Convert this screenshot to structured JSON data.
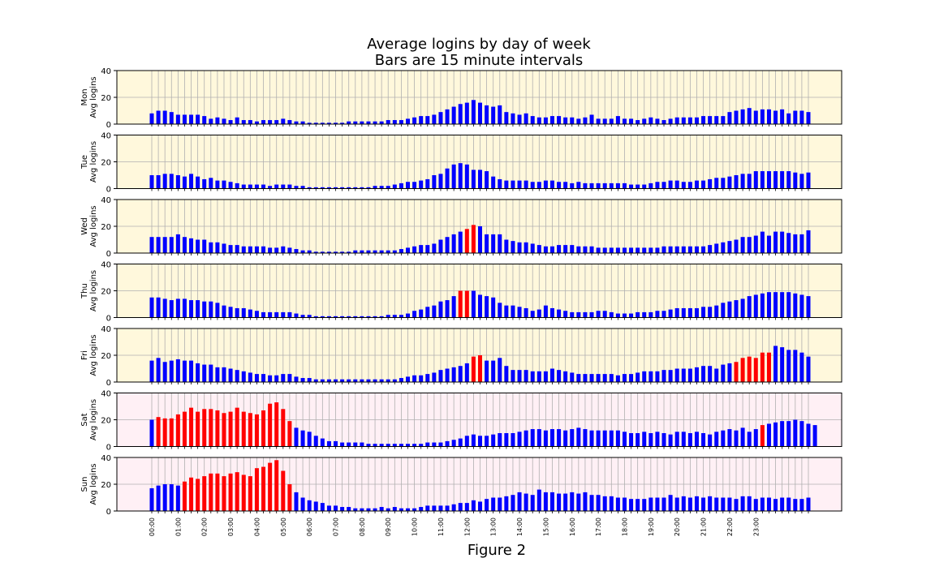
{
  "figure": {
    "title_line1": "Average logins by day of week",
    "title_line2": "Bars are 15 minute intervals",
    "caption": "Figure 2"
  },
  "colors": {
    "bar_normal": "#0000ff",
    "bar_high": "#ff0000",
    "weekday_bg": "#fff8dc",
    "weekend_bg": "#fff0f5",
    "grid": "#b0b0b0"
  },
  "chart_data": {
    "type": "bar",
    "ylabel_suffix": "Avg logins",
    "ylim": [
      0,
      40
    ],
    "yticks": [
      0,
      20,
      40
    ],
    "grid": true,
    "x_tick_labels": [
      "00:00",
      "01:00",
      "02:00",
      "03:00",
      "04:00",
      "05:00",
      "06:00",
      "07:00",
      "08:00",
      "09:00",
      "10:00",
      "11:00",
      "12:00",
      "13:00",
      "14:00",
      "15:00",
      "16:00",
      "17:00",
      "18:00",
      "19:00",
      "20:00",
      "21:00",
      "22:00",
      "23:00"
    ],
    "x_tick_every": 4,
    "interval_minutes": 15,
    "panels": [
      {
        "day": "Mon",
        "weekend": false,
        "highlight": [],
        "values": [
          8,
          10,
          10,
          9,
          7,
          7,
          7,
          7,
          6,
          4,
          5,
          4,
          3,
          5,
          3,
          3,
          2,
          3,
          3,
          3,
          4,
          3,
          2,
          2,
          1,
          1,
          1,
          1,
          1,
          1,
          2,
          2,
          2,
          2,
          2,
          2,
          3,
          3,
          3,
          4,
          5,
          6,
          6,
          7,
          9,
          11,
          13,
          15,
          16,
          18,
          16,
          14,
          13,
          14,
          9,
          8,
          7,
          8,
          6,
          5,
          5,
          6,
          6,
          5,
          5,
          4,
          5,
          7,
          4,
          4,
          4,
          6,
          4,
          4,
          3,
          4,
          5,
          4,
          3,
          4,
          5,
          5,
          5,
          5,
          6,
          6,
          6,
          6,
          9,
          10,
          11,
          12,
          10,
          11,
          11,
          10,
          11,
          8,
          10,
          10,
          9
        ]
      },
      {
        "day": "Tue",
        "weekend": false,
        "highlight": [],
        "values": [
          10,
          10,
          11,
          11,
          10,
          9,
          11,
          9,
          7,
          8,
          6,
          6,
          5,
          4,
          3,
          3,
          3,
          3,
          2,
          3,
          3,
          3,
          2,
          2,
          1,
          1,
          1,
          1,
          1,
          1,
          1,
          1,
          1,
          1,
          2,
          2,
          2,
          3,
          4,
          5,
          5,
          6,
          7,
          10,
          11,
          15,
          18,
          19,
          18,
          14,
          14,
          13,
          9,
          7,
          6,
          6,
          6,
          6,
          5,
          5,
          6,
          6,
          5,
          5,
          4,
          5,
          4,
          4,
          4,
          4,
          4,
          4,
          4,
          3,
          3,
          3,
          4,
          5,
          5,
          6,
          6,
          5,
          5,
          6,
          6,
          7,
          8,
          8,
          9,
          10,
          11,
          11,
          13,
          13,
          13,
          13,
          13,
          13,
          12,
          11,
          12
        ]
      },
      {
        "day": "Wed",
        "weekend": false,
        "highlight": [
          48,
          49
        ],
        "values": [
          12,
          12,
          12,
          12,
          14,
          12,
          11,
          10,
          10,
          8,
          8,
          7,
          6,
          6,
          5,
          5,
          5,
          5,
          4,
          4,
          5,
          4,
          3,
          2,
          2,
          1,
          1,
          1,
          1,
          1,
          1,
          2,
          2,
          2,
          2,
          2,
          2,
          2,
          3,
          4,
          5,
          6,
          6,
          7,
          10,
          12,
          14,
          16,
          18,
          21,
          20,
          14,
          14,
          14,
          10,
          9,
          8,
          8,
          7,
          6,
          5,
          5,
          6,
          6,
          6,
          5,
          5,
          5,
          4,
          4,
          4,
          4,
          4,
          4,
          4,
          4,
          4,
          4,
          5,
          5,
          5,
          5,
          5,
          5,
          5,
          6,
          7,
          8,
          9,
          10,
          12,
          12,
          13,
          16,
          13,
          16,
          16,
          15,
          14,
          14,
          17
        ]
      },
      {
        "day": "Thu",
        "weekend": false,
        "highlight": [
          47,
          48
        ],
        "values": [
          15,
          15,
          14,
          13,
          14,
          14,
          13,
          13,
          12,
          12,
          11,
          9,
          8,
          7,
          7,
          6,
          5,
          4,
          4,
          4,
          4,
          4,
          3,
          2,
          2,
          1,
          1,
          1,
          1,
          1,
          1,
          1,
          1,
          1,
          1,
          1,
          2,
          2,
          2,
          3,
          5,
          6,
          8,
          9,
          12,
          13,
          16,
          20,
          20,
          20,
          17,
          16,
          15,
          11,
          9,
          9,
          8,
          7,
          5,
          6,
          9,
          7,
          6,
          5,
          4,
          4,
          4,
          4,
          5,
          5,
          4,
          3,
          3,
          3,
          4,
          4,
          4,
          5,
          5,
          6,
          7,
          7,
          7,
          7,
          8,
          8,
          9,
          11,
          12,
          13,
          14,
          16,
          17,
          18,
          19,
          19,
          19,
          19,
          18,
          17,
          16
        ]
      },
      {
        "day": "Fri",
        "weekend": false,
        "highlight": [
          49,
          50,
          89,
          90,
          91,
          92,
          93,
          94
        ],
        "values": [
          16,
          18,
          15,
          16,
          17,
          16,
          16,
          14,
          13,
          13,
          11,
          11,
          10,
          9,
          8,
          7,
          6,
          6,
          5,
          5,
          6,
          6,
          4,
          3,
          3,
          2,
          2,
          2,
          2,
          2,
          2,
          2,
          2,
          2,
          2,
          2,
          2,
          2,
          3,
          4,
          5,
          5,
          6,
          7,
          9,
          10,
          11,
          12,
          14,
          19,
          20,
          16,
          16,
          18,
          12,
          9,
          9,
          9,
          8,
          8,
          8,
          10,
          9,
          8,
          7,
          6,
          6,
          6,
          6,
          6,
          6,
          5,
          6,
          6,
          7,
          8,
          8,
          8,
          9,
          9,
          10,
          10,
          10,
          11,
          12,
          12,
          10,
          13,
          14,
          15,
          18,
          19,
          18,
          22,
          22,
          27,
          26,
          24,
          24,
          22,
          19
        ]
      },
      {
        "day": "Sat",
        "weekend": true,
        "highlight": [
          1,
          2,
          3,
          4,
          5,
          6,
          7,
          8,
          9,
          10,
          11,
          12,
          13,
          14,
          15,
          16,
          17,
          18,
          19,
          20,
          21,
          93
        ],
        "values": [
          20,
          22,
          21,
          21,
          24,
          26,
          29,
          26,
          28,
          28,
          27,
          25,
          26,
          29,
          26,
          25,
          24,
          27,
          32,
          33,
          28,
          19,
          14,
          12,
          11,
          8,
          6,
          4,
          4,
          3,
          3,
          3,
          3,
          2,
          2,
          2,
          2,
          2,
          2,
          2,
          2,
          2,
          3,
          3,
          3,
          4,
          5,
          6,
          8,
          9,
          8,
          8,
          9,
          10,
          10,
          10,
          11,
          12,
          13,
          13,
          12,
          13,
          13,
          12,
          13,
          14,
          13,
          12,
          12,
          12,
          12,
          12,
          11,
          10,
          10,
          11,
          10,
          11,
          10,
          9,
          11,
          11,
          10,
          11,
          10,
          9,
          11,
          12,
          13,
          12,
          14,
          11,
          13,
          16,
          17,
          18,
          19,
          19,
          20,
          19,
          17,
          16
        ]
      },
      {
        "day": "Sun",
        "weekend": true,
        "highlight": [
          5,
          6,
          7,
          8,
          9,
          10,
          11,
          12,
          13,
          14,
          15,
          16,
          17,
          18,
          19,
          20,
          21
        ],
        "values": [
          17,
          19,
          20,
          20,
          19,
          22,
          25,
          24,
          26,
          28,
          28,
          26,
          28,
          29,
          27,
          26,
          32,
          33,
          36,
          38,
          30,
          20,
          14,
          10,
          8,
          7,
          6,
          4,
          4,
          3,
          3,
          2,
          2,
          2,
          2,
          3,
          2,
          3,
          2,
          2,
          2,
          3,
          4,
          4,
          4,
          4,
          5,
          6,
          6,
          8,
          7,
          9,
          10,
          10,
          11,
          12,
          14,
          13,
          12,
          16,
          14,
          14,
          13,
          13,
          14,
          13,
          14,
          12,
          12,
          11,
          11,
          10,
          10,
          9,
          9,
          9,
          10,
          10,
          10,
          12,
          10,
          11,
          10,
          11,
          10,
          11,
          10,
          10,
          10,
          9,
          11,
          11,
          9,
          10,
          10,
          9,
          10,
          10,
          9,
          9,
          10
        ]
      }
    ]
  }
}
